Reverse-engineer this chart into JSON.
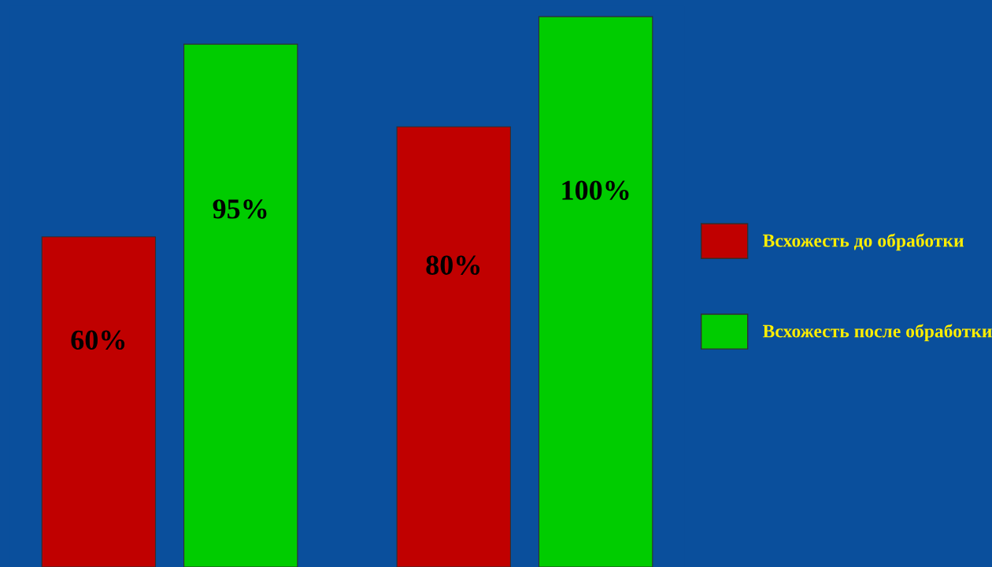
{
  "chart_data": {
    "type": "bar",
    "categories": [
      null,
      null
    ],
    "series": [
      {
        "name": "Всхожесть до обработки",
        "color": "#c00000",
        "values": [
          60,
          80
        ],
        "value_labels": [
          "60%",
          "80%"
        ]
      },
      {
        "name": "Всхожесть после обработки",
        "color": "#00cc00",
        "values": [
          95,
          100
        ],
        "value_labels": [
          "95%",
          "100%"
        ]
      }
    ],
    "legend": "right",
    "grid": false
  }
}
